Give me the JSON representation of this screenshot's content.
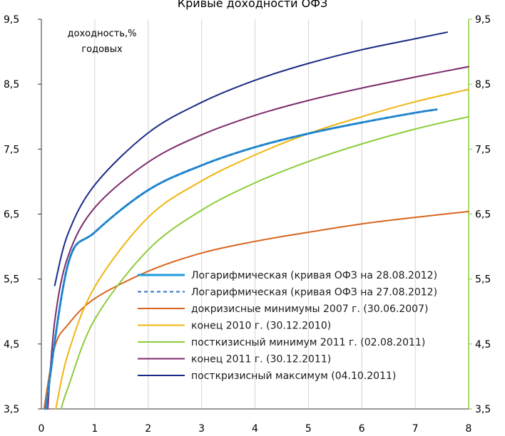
{
  "chart_data": {
    "type": "line",
    "title": "Кривые доходности ОФЗ",
    "annotation": [
      "доходность,%",
      "годовых"
    ],
    "xlabel": "",
    "ylabel": "",
    "xlim": [
      0,
      8
    ],
    "ylim": [
      3.5,
      9.5
    ],
    "x_ticks": [
      "0",
      "1",
      "2",
      "3",
      "4",
      "5",
      "6",
      "7",
      "8"
    ],
    "y_ticks": [
      "3,5",
      "4,5",
      "5,5",
      "6,5",
      "7,5",
      "8,5",
      "9,5"
    ],
    "grid": "vertical",
    "legend_position": "bottom-right",
    "series": [
      {
        "name": "Логарифмическая (кривая ОФЗ на 28.08.2012)",
        "color": "#1b9bd7",
        "dash": "solid",
        "width": 3,
        "x": [
          0.08,
          0.5,
          1,
          2,
          3,
          4,
          5,
          6,
          7,
          7.4
        ],
        "y": [
          3.5,
          5.73,
          6.22,
          6.87,
          7.25,
          7.53,
          7.74,
          7.91,
          8.06,
          8.11
        ]
      },
      {
        "name": "Логарифмическая (кривая ОФЗ на 27.08.2012)",
        "color": "#2b74c7",
        "dash": "dashed",
        "width": 2,
        "x": [
          0.08,
          0.5,
          1,
          2,
          3,
          4,
          5,
          6,
          7,
          7.4
        ],
        "y": [
          3.5,
          5.73,
          6.22,
          6.87,
          7.25,
          7.53,
          7.74,
          7.91,
          8.06,
          8.11
        ]
      },
      {
        "name": "докризисные минимумы 2007 г. (30.06.2007)",
        "color": "#d9651e",
        "dash": "solid",
        "width": 2,
        "x": [
          0.05,
          0.25,
          0.5,
          1,
          2,
          3,
          4,
          5,
          6,
          7,
          8
        ],
        "y": [
          3.5,
          4.45,
          4.8,
          5.2,
          5.62,
          5.9,
          6.08,
          6.22,
          6.35,
          6.45,
          6.54
        ]
      },
      {
        "name": "конец 2010 г. (30.12.2010)",
        "color": "#f0b50f",
        "dash": "solid",
        "width": 2,
        "x": [
          0.27,
          0.5,
          1,
          2,
          3,
          4,
          5,
          6,
          7,
          8
        ],
        "y": [
          3.5,
          4.35,
          5.38,
          6.45,
          7.01,
          7.41,
          7.74,
          8.0,
          8.23,
          8.42
        ]
      },
      {
        "name": "посткизисный минимум 2011 г. (02.08.2011)",
        "color": "#8ccc3a",
        "dash": "solid",
        "width": 2,
        "x": [
          0.37,
          0.5,
          1,
          2,
          3,
          4,
          5,
          6,
          7,
          8
        ],
        "y": [
          3.5,
          3.83,
          4.88,
          5.95,
          6.56,
          6.98,
          7.31,
          7.58,
          7.81,
          8.0
        ]
      },
      {
        "name": "конец 2011 г. (30.12.2011)",
        "color": "#7b2b6b",
        "dash": "solid",
        "width": 2,
        "x": [
          0.12,
          0.25,
          0.5,
          1,
          2,
          3,
          4,
          5,
          6,
          7,
          8
        ],
        "y": [
          3.5,
          4.85,
          5.85,
          6.6,
          7.3,
          7.72,
          8.02,
          8.25,
          8.44,
          8.61,
          8.77
        ]
      },
      {
        "name": "посткризисный максимум (04.10.2011)",
        "color": "#1a2a85",
        "dash": "solid",
        "width": 2,
        "x": [
          0.25,
          0.5,
          1,
          2,
          3,
          4,
          5,
          6,
          7,
          7.6
        ],
        "y": [
          5.4,
          6.2,
          6.95,
          7.75,
          8.22,
          8.56,
          8.82,
          9.03,
          9.2,
          9.3
        ]
      }
    ]
  }
}
